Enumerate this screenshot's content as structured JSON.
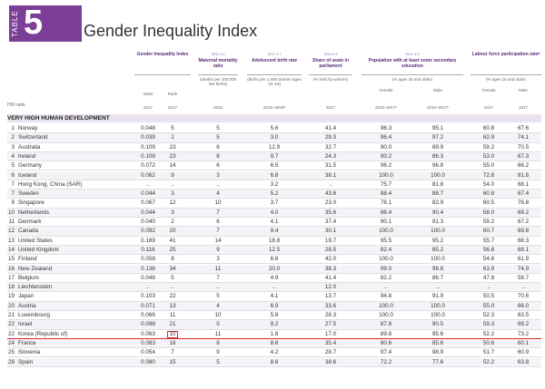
{
  "header": {
    "table_word": "TABLE",
    "table_number": "5",
    "title": "Gender Inequality Index"
  },
  "columns": [
    {
      "sdg": "",
      "name": "Gender Inequality Index",
      "unit": "",
      "subs": [
        {
          "label": "Value",
          "year": "2017"
        },
        {
          "label": "Rank",
          "year": "2017"
        }
      ]
    },
    {
      "sdg": "SDG 3.1",
      "name": "Maternal mortality ratio",
      "unit": "(deaths per 100,000 live births)",
      "subs": [
        {
          "label": "",
          "year": "2015"
        }
      ]
    },
    {
      "sdg": "SDG 3.7",
      "name": "Adolescent birth rate",
      "unit": "(births per 1,000 women ages 15–19)",
      "subs": [
        {
          "label": "",
          "year": "2015–2020ᵇ"
        }
      ]
    },
    {
      "sdg": "SDG 5.5",
      "name": "Share of seats in parliament",
      "unit": "(% held by women)",
      "subs": [
        {
          "label": "",
          "year": "2017"
        }
      ]
    },
    {
      "sdg": "SDG 4.6",
      "name": "Population with at least some secondary education",
      "unit": "(% ages 25 and older)",
      "subs": [
        {
          "label": "Female",
          "year": "2010–2017ᶜ"
        },
        {
          "label": "Male",
          "year": "2010–2017ᶜ"
        }
      ]
    },
    {
      "sdg": "",
      "name": "Labour force participation rateᵈ",
      "unit": "(% ages 15 and older)",
      "subs": [
        {
          "label": "Female",
          "year": "2017"
        },
        {
          "label": "Male",
          "year": "2017"
        }
      ]
    }
  ],
  "hdi_rank_label": "HDI rank",
  "group_label": "VERY HIGH HUMAN DEVELOPMENT",
  "rows": [
    {
      "rank": "1",
      "country": "Norway",
      "v": [
        "0.048",
        "5",
        "5",
        "5.6",
        "41.4",
        "96.3",
        "95.1",
        "60.8",
        "67.6"
      ]
    },
    {
      "rank": "2",
      "country": "Switzerland",
      "v": [
        "0.039",
        "1",
        "5",
        "3.0",
        "29.3",
        "96.4",
        "97.2",
        "62.9",
        "74.1"
      ]
    },
    {
      "rank": "3",
      "country": "Australia",
      "v": [
        "0.109",
        "23",
        "6",
        "12.9",
        "32.7",
        "90.0",
        "89.9",
        "59.2",
        "70.5"
      ]
    },
    {
      "rank": "4",
      "country": "Ireland",
      "v": [
        "0.109",
        "23",
        "8",
        "9.7",
        "24.3",
        "90.2",
        "86.3",
        "53.0",
        "67.3"
      ]
    },
    {
      "rank": "5",
      "country": "Germany",
      "v": [
        "0.072",
        "14",
        "6",
        "6.5",
        "31.5",
        "96.2",
        "96.8",
        "55.0",
        "66.2"
      ]
    },
    {
      "rank": "6",
      "country": "Iceland",
      "v": [
        "0.062",
        "9",
        "3",
        "6.8",
        "38.1",
        "100.0",
        "100.0",
        "72.8",
        "81.8"
      ]
    },
    {
      "rank": "7",
      "country": "Hong Kong, China (SAR)",
      "v": [
        "..",
        "..",
        "..",
        "3.2",
        "..",
        "75.7",
        "81.8",
        "54.0",
        "68.1"
      ]
    },
    {
      "rank": "7",
      "country": "Sweden",
      "v": [
        "0.044",
        "3",
        "4",
        "5.2",
        "43.6",
        "88.4",
        "88.7",
        "60.8",
        "67.4"
      ]
    },
    {
      "rank": "9",
      "country": "Singapore",
      "v": [
        "0.067",
        "12",
        "10",
        "3.7",
        "23.0",
        "76.1",
        "82.9",
        "60.5",
        "76.8"
      ]
    },
    {
      "rank": "10",
      "country": "Netherlands",
      "v": [
        "0.044",
        "3",
        "7",
        "4.0",
        "35.6",
        "86.4",
        "90.4",
        "58.0",
        "69.2"
      ]
    },
    {
      "rank": "11",
      "country": "Denmark",
      "v": [
        "0.040",
        "2",
        "6",
        "4.1",
        "37.4",
        "90.1",
        "91.3",
        "59.2",
        "67.2"
      ]
    },
    {
      "rank": "12",
      "country": "Canada",
      "v": [
        "0.092",
        "20",
        "7",
        "9.4",
        "30.1",
        "100.0",
        "100.0",
        "60.7",
        "69.8"
      ]
    },
    {
      "rank": "13",
      "country": "United States",
      "v": [
        "0.189",
        "41",
        "14",
        "18.8",
        "19.7",
        "95.5",
        "95.2",
        "55.7",
        "68.3"
      ]
    },
    {
      "rank": "14",
      "country": "United Kingdom",
      "v": [
        "0.116",
        "25",
        "9",
        "12.5",
        "28.5",
        "82.4",
        "85.2",
        "56.8",
        "68.1"
      ]
    },
    {
      "rank": "15",
      "country": "Finland",
      "v": [
        "0.058",
        "8",
        "3",
        "6.8",
        "42.0",
        "100.0",
        "100.0",
        "54.8",
        "61.9"
      ]
    },
    {
      "rank": "16",
      "country": "New Zealand",
      "v": [
        "0.136",
        "34",
        "11",
        "20.0",
        "38.3",
        "99.0",
        "98.8",
        "63.9",
        "74.9"
      ]
    },
    {
      "rank": "17",
      "country": "Belgium",
      "v": [
        "0.048",
        "5",
        "7",
        "4.9",
        "41.4",
        "82.2",
        "86.7",
        "47.8",
        "58.7"
      ]
    },
    {
      "rank": "18",
      "country": "Liechtenstein",
      "v": [
        "..",
        "..",
        "..",
        "..",
        "12.0",
        "..",
        "..",
        "..",
        ".."
      ]
    },
    {
      "rank": "19",
      "country": "Japan",
      "v": [
        "0.103",
        "22",
        "5",
        "4.1",
        "13.7",
        "94.8",
        "91.9",
        "50.5",
        "70.6"
      ]
    },
    {
      "rank": "20",
      "country": "Austria",
      "v": [
        "0.071",
        "13",
        "4",
        "6.9",
        "33.6",
        "100.0",
        "100.0",
        "55.0",
        "66.0"
      ]
    },
    {
      "rank": "21",
      "country": "Luxembourg",
      "v": [
        "0.066",
        "11",
        "10",
        "5.8",
        "28.3",
        "100.0",
        "100.0",
        "52.3",
        "63.5"
      ]
    },
    {
      "rank": "22",
      "country": "Israel",
      "v": [
        "0.098",
        "21",
        "5",
        "9.2",
        "27.5",
        "87.8",
        "90.5",
        "59.3",
        "69.2"
      ]
    },
    {
      "rank": "22",
      "country": "Korea (Republic of)",
      "v": [
        "0.063",
        "10",
        "11",
        "1.6",
        "17.0",
        "89.8",
        "95.6",
        "52.2",
        "73.2"
      ],
      "highlight": true
    },
    {
      "rank": "24",
      "country": "France",
      "v": [
        "0.083",
        "16",
        "8",
        "8.6",
        "35.4",
        "80.6",
        "85.6",
        "50.6",
        "60.1"
      ]
    },
    {
      "rank": "25",
      "country": "Slovenia",
      "v": [
        "0.054",
        "7",
        "9",
        "4.2",
        "28.7",
        "97.4",
        "98.9",
        "51.7",
        "60.9"
      ]
    },
    {
      "rank": "26",
      "country": "Spain",
      "v": [
        "0.080",
        "15",
        "5",
        "8.6",
        "38.6",
        "72.2",
        "77.6",
        "52.2",
        "63.8"
      ]
    }
  ]
}
